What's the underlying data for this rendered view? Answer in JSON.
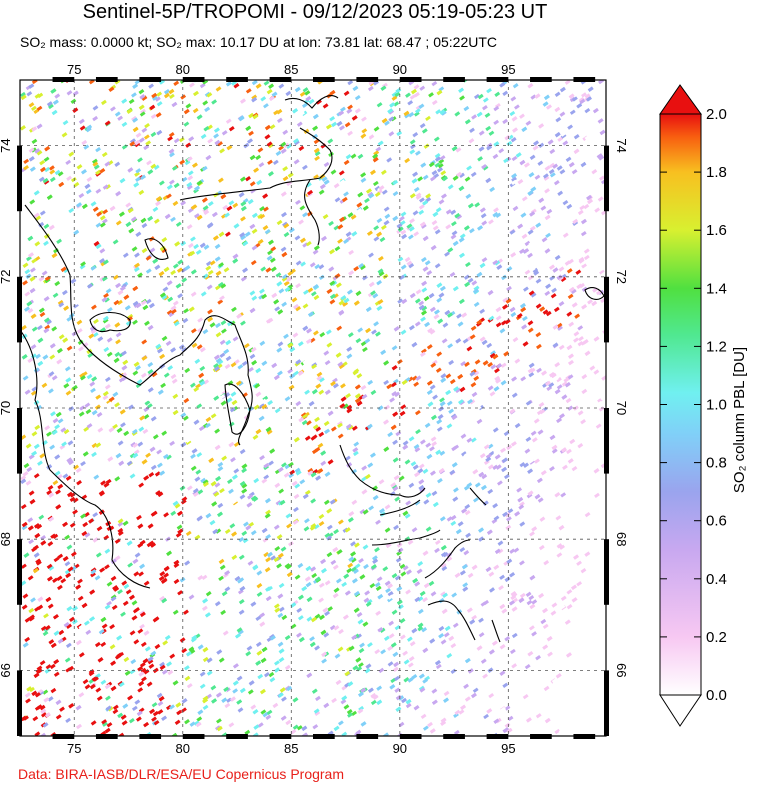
{
  "title": "Sentinel-5P/TROPOMI - 09/12/2023 05:19-05:23 UT",
  "subtitle": "SO₂ mass: 0.0000 kt; SO₂ max: 10.17 DU at lon: 73.81 lat: 68.47 ; 05:22UTC",
  "credit": "Data: BIRA-IASB/DLR/ESA/EU Copernicus Program",
  "map": {
    "lon_ticks": [
      "75",
      "80",
      "85",
      "90",
      "95"
    ],
    "lat_ticks": [
      "74",
      "72",
      "70",
      "68",
      "66"
    ],
    "lon_range": [
      72.5,
      99.5
    ],
    "lat_range": [
      65,
      75
    ]
  },
  "colorbar": {
    "label": "SO₂ column PBL [DU]",
    "ticks": [
      "0.0",
      "0.2",
      "0.4",
      "0.6",
      "0.8",
      "1.0",
      "1.2",
      "1.4",
      "1.6",
      "1.8",
      "2.0"
    ],
    "colors": [
      "#ffffff",
      "#f7c8f2",
      "#c8a8f0",
      "#9aa4ee",
      "#80d0f8",
      "#70f0f0",
      "#50e890",
      "#50e040",
      "#d8f030",
      "#f8c020",
      "#f86010",
      "#e81010"
    ]
  }
}
